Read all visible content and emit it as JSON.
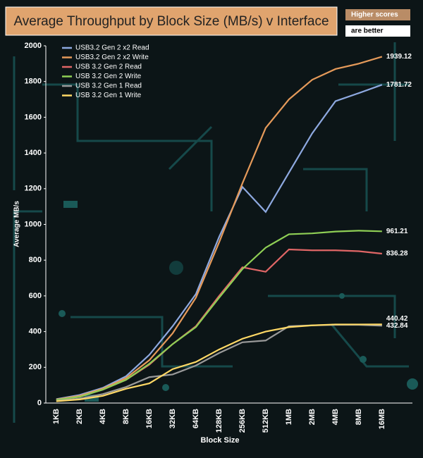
{
  "chart_data": {
    "type": "line",
    "title": "Average Throughput by Block Size (MB/s) v Interface",
    "annotations": [
      "Higher scores",
      "are better"
    ],
    "x_label": "Block Size",
    "y_label": "Average MB/s",
    "categories": [
      "1KB",
      "2KB",
      "4KB",
      "8KB",
      "16KB",
      "32KB",
      "64KB",
      "128KB",
      "256KB",
      "512KB",
      "1MB",
      "2MB",
      "4MB",
      "8MB",
      "16MB"
    ],
    "ylim": [
      0,
      2000
    ],
    "yticks": [
      0,
      200,
      400,
      600,
      800,
      1000,
      1200,
      1400,
      1600,
      1800,
      2000
    ],
    "grid": false,
    "legend": "top-left",
    "series": [
      {
        "name": "USB3.2 Gen 2 x2 Read",
        "color": "#8ea9e0",
        "values": [
          22,
          45,
          85,
          150,
          270,
          430,
          610,
          930,
          1210,
          1070,
          1290,
          1510,
          1690,
          1735,
          1781.72
        ]
      },
      {
        "name": "USB3.2 Gen 2 x2 Write",
        "color": "#e59a5a",
        "values": [
          20,
          40,
          80,
          140,
          240,
          390,
          590,
          900,
          1230,
          1540,
          1700,
          1810,
          1870,
          1900,
          1939.12
        ]
      },
      {
        "name": "USB 3.2 Gen 2 Read",
        "color": "#e06666",
        "values": [
          18,
          35,
          75,
          130,
          215,
          330,
          430,
          600,
          760,
          735,
          860,
          855,
          855,
          850,
          836.28
        ]
      },
      {
        "name": "USB 3.2 Gen 2 Write",
        "color": "#8fcf55",
        "values": [
          18,
          35,
          75,
          130,
          220,
          330,
          425,
          590,
          750,
          870,
          945,
          950,
          960,
          965,
          961.21
        ]
      },
      {
        "name": "USB 3.2 Gen 1 Read",
        "color": "#9a9a9a",
        "values": [
          12,
          25,
          50,
          90,
          145,
          160,
          210,
          280,
          340,
          350,
          430,
          435,
          438,
          438,
          432.84
        ]
      },
      {
        "name": "USB 3.2 Gen 1 Write",
        "color": "#ffd966",
        "values": [
          10,
          20,
          40,
          80,
          110,
          190,
          230,
          300,
          360,
          400,
          425,
          435,
          440,
          440,
          440.42
        ]
      }
    ]
  }
}
